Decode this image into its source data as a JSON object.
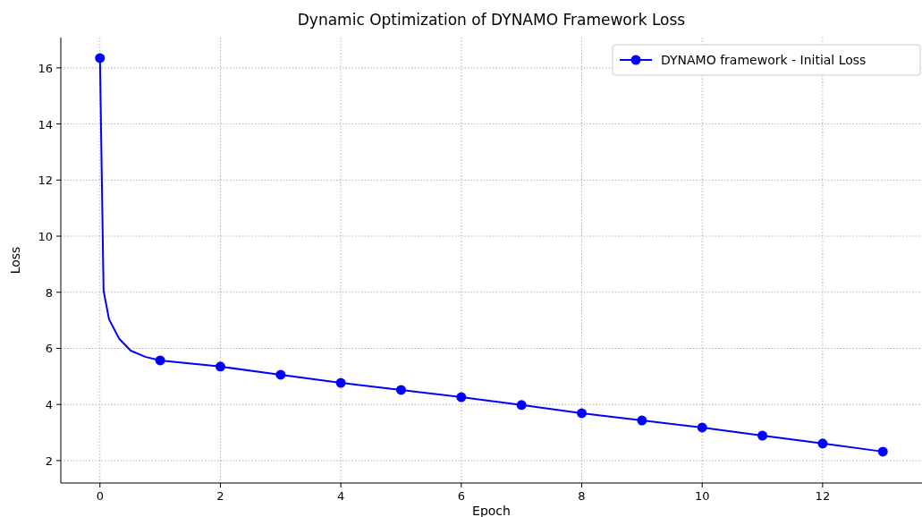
{
  "chart_data": {
    "type": "line",
    "title": "Dynamic Optimization of DYNAMO Framework Loss",
    "xlabel": "Epoch",
    "ylabel": "Loss",
    "xlim": [
      -0.65,
      13.65
    ],
    "ylim": [
      1.2,
      17.08
    ],
    "xticks": [
      0,
      2,
      4,
      6,
      8,
      10,
      12
    ],
    "yticks": [
      2,
      4,
      6,
      8,
      10,
      12,
      14,
      16
    ],
    "grid": true,
    "legend": "top right",
    "marker": "circle",
    "line_style": "solid",
    "series": [
      {
        "name": "DYNAMO framework - Initial Loss",
        "color": "#0000ff",
        "marker": "none",
        "x": [
          0,
          0.06,
          0.15,
          0.32,
          0.51,
          0.75,
          1,
          2,
          3,
          4,
          5,
          6,
          7,
          8,
          9,
          10,
          11,
          12,
          13
        ],
        "values": [
          16.35,
          8.06,
          7.04,
          6.34,
          5.92,
          5.7,
          5.57,
          5.35,
          5.06,
          4.77,
          4.52,
          4.26,
          3.98,
          3.69,
          3.43,
          3.18,
          2.89,
          2.61,
          2.32
        ]
      },
      {
        "type": "scatter",
        "color": "#0000ff",
        "x": [
          0,
          1,
          2,
          3,
          4,
          5,
          6,
          7,
          8,
          9,
          10,
          11,
          12,
          13
        ],
        "values": [
          16.35,
          5.57,
          5.35,
          5.06,
          4.77,
          4.52,
          4.26,
          3.98,
          3.69,
          3.43,
          3.18,
          2.89,
          2.61,
          2.32
        ]
      }
    ]
  }
}
